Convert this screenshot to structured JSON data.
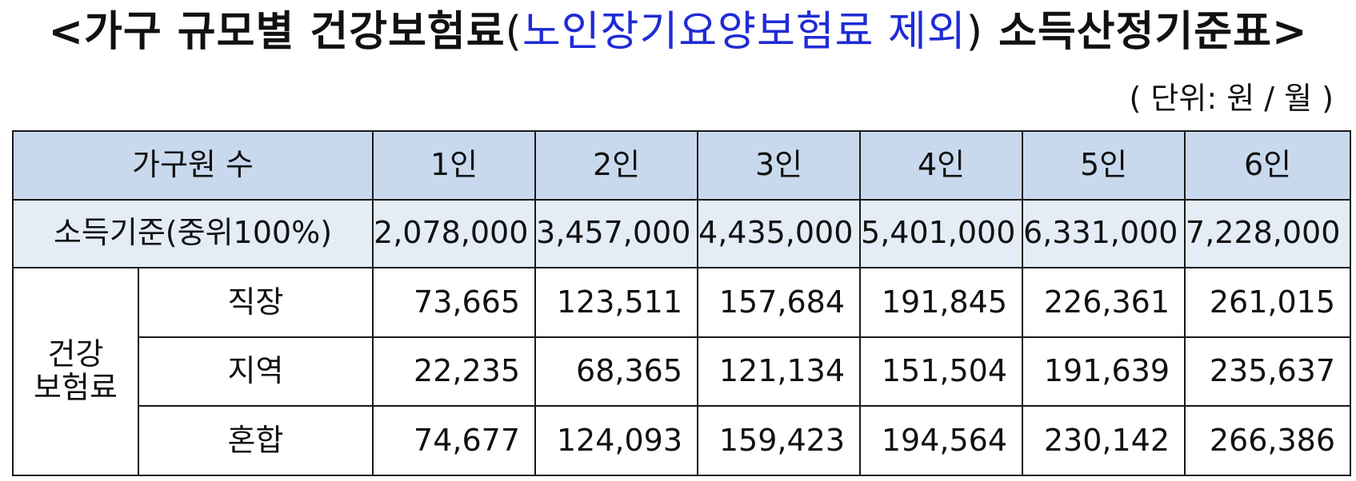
{
  "title": {
    "before": "<가구 규모별 건강보험료",
    "paren_open": "(",
    "highlight": "노인장기요양보험료 제외",
    "paren_close": ")",
    "after": " 소득산정기준표>"
  },
  "unit_note": "( 단위: 원 / 월 )",
  "colors": {
    "header_bg": "#c9d9ed",
    "income_bg": "#e4ecf6",
    "highlight_text": "#1f2bd6"
  },
  "table": {
    "corner_label": "가구원 수",
    "columns": [
      "1인",
      "2인",
      "3인",
      "4인",
      "5인",
      "6인"
    ],
    "income_row": {
      "label": "소득기준(중위100%)",
      "values": [
        "2,078,000",
        "3,457,000",
        "4,435,000",
        "5,401,000",
        "6,331,000",
        "7,228,000"
      ]
    },
    "group_label_line1": "건강",
    "group_label_line2": "보험료",
    "rows": [
      {
        "label": "직장",
        "values": [
          "73,665",
          "123,511",
          "157,684",
          "191,845",
          "226,361",
          "261,015"
        ]
      },
      {
        "label": "지역",
        "values": [
          "22,235",
          "68,365",
          "121,134",
          "151,504",
          "191,639",
          "235,637"
        ]
      },
      {
        "label": "혼합",
        "values": [
          "74,677",
          "124,093",
          "159,423",
          "194,564",
          "230,142",
          "266,386"
        ]
      }
    ]
  }
}
